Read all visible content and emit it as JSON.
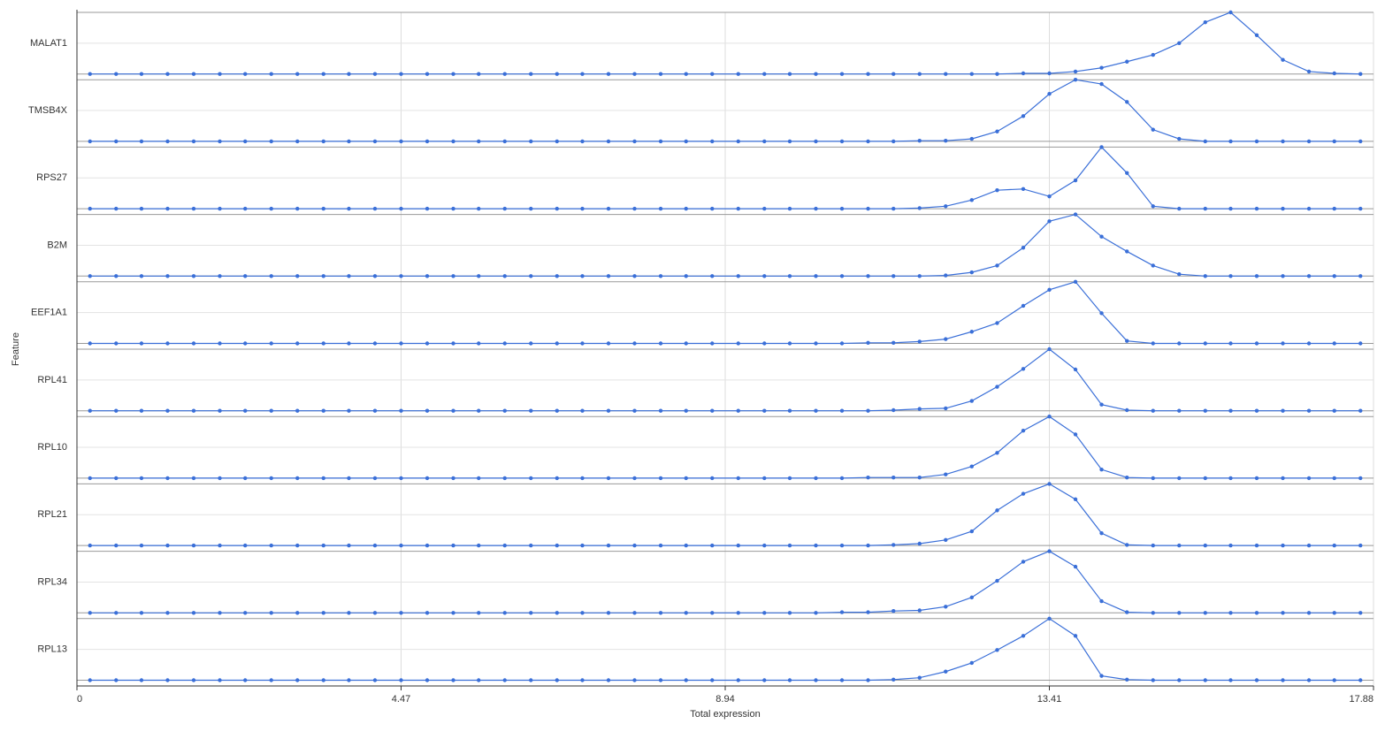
{
  "chart_data": {
    "type": "ridgeline",
    "xlabel": "Total expression",
    "ylabel": "Feature",
    "xlim": [
      0,
      17.88
    ],
    "xticks": [
      0,
      4.47,
      8.94,
      13.41,
      17.88
    ],
    "ylim": [
      0,
      1
    ],
    "grid": true,
    "color": "#3a6fd8",
    "x": [
      0.18,
      0.54,
      0.89,
      1.25,
      1.61,
      1.97,
      2.32,
      2.68,
      3.04,
      3.4,
      3.75,
      4.11,
      4.47,
      4.83,
      5.19,
      5.54,
      5.9,
      6.26,
      6.62,
      6.97,
      7.33,
      7.69,
      8.05,
      8.4,
      8.76,
      9.12,
      9.48,
      9.83,
      10.19,
      10.55,
      10.91,
      11.26,
      11.62,
      11.98,
      12.34,
      12.69,
      13.05,
      13.41,
      13.77,
      14.13,
      14.48,
      14.84,
      15.2,
      15.56,
      15.91,
      16.27,
      16.63,
      16.99,
      17.34,
      17.7
    ],
    "series": [
      {
        "name": "MALAT1",
        "values": [
          0,
          0,
          0,
          0,
          0,
          0,
          0,
          0,
          0,
          0,
          0,
          0,
          0,
          0,
          0,
          0,
          0,
          0,
          0,
          0,
          0,
          0,
          0,
          0,
          0,
          0,
          0,
          0,
          0,
          0,
          0,
          0,
          0,
          0,
          0,
          0,
          0.01,
          0.01,
          0.04,
          0.1,
          0.2,
          0.31,
          0.5,
          0.84,
          1,
          0.63,
          0.23,
          0.04,
          0.01,
          0
        ]
      },
      {
        "name": "TMSB4X",
        "values": [
          0,
          0,
          0,
          0,
          0,
          0,
          0,
          0,
          0,
          0,
          0,
          0,
          0,
          0,
          0,
          0,
          0,
          0,
          0,
          0,
          0,
          0,
          0,
          0,
          0,
          0,
          0,
          0,
          0,
          0,
          0,
          0,
          0.01,
          0.01,
          0.04,
          0.16,
          0.41,
          0.77,
          1,
          0.93,
          0.64,
          0.19,
          0.04,
          0,
          0,
          0,
          0,
          0,
          0,
          0
        ]
      },
      {
        "name": "RPS27",
        "values": [
          0,
          0,
          0,
          0,
          0,
          0,
          0,
          0,
          0,
          0,
          0,
          0,
          0,
          0,
          0,
          0,
          0,
          0,
          0,
          0,
          0,
          0,
          0,
          0,
          0,
          0,
          0,
          0,
          0,
          0,
          0,
          0,
          0.01,
          0.04,
          0.14,
          0.3,
          0.32,
          0.2,
          0.46,
          1,
          0.58,
          0.04,
          0,
          0,
          0,
          0,
          0,
          0,
          0,
          0
        ]
      },
      {
        "name": "B2M",
        "values": [
          0,
          0,
          0,
          0,
          0,
          0,
          0,
          0,
          0,
          0,
          0,
          0,
          0,
          0,
          0,
          0,
          0,
          0,
          0,
          0,
          0,
          0,
          0,
          0,
          0,
          0,
          0,
          0,
          0,
          0,
          0,
          0,
          0,
          0.01,
          0.06,
          0.17,
          0.46,
          0.89,
          1,
          0.64,
          0.4,
          0.17,
          0.03,
          0,
          0,
          0,
          0,
          0,
          0,
          0
        ]
      },
      {
        "name": "EEF1A1",
        "values": [
          0,
          0,
          0,
          0,
          0,
          0,
          0,
          0,
          0,
          0,
          0,
          0,
          0,
          0,
          0,
          0,
          0,
          0,
          0,
          0,
          0,
          0,
          0,
          0,
          0,
          0,
          0,
          0,
          0,
          0,
          0.01,
          0.01,
          0.03,
          0.07,
          0.19,
          0.33,
          0.61,
          0.87,
          1,
          0.49,
          0.04,
          0,
          0,
          0,
          0,
          0,
          0,
          0,
          0,
          0
        ]
      },
      {
        "name": "RPL41",
        "values": [
          0,
          0,
          0,
          0,
          0,
          0,
          0,
          0,
          0,
          0,
          0,
          0,
          0,
          0,
          0,
          0,
          0,
          0,
          0,
          0,
          0,
          0,
          0,
          0,
          0,
          0,
          0,
          0,
          0,
          0,
          0,
          0.01,
          0.03,
          0.04,
          0.16,
          0.39,
          0.68,
          1,
          0.67,
          0.1,
          0.01,
          0,
          0,
          0,
          0,
          0,
          0,
          0,
          0,
          0
        ]
      },
      {
        "name": "RPL10",
        "values": [
          0,
          0,
          0,
          0,
          0,
          0,
          0,
          0,
          0,
          0,
          0,
          0,
          0,
          0,
          0,
          0,
          0,
          0,
          0,
          0,
          0,
          0,
          0,
          0,
          0,
          0,
          0,
          0,
          0,
          0,
          0.01,
          0.01,
          0.01,
          0.06,
          0.19,
          0.41,
          0.77,
          1,
          0.71,
          0.14,
          0.01,
          0,
          0,
          0,
          0,
          0,
          0,
          0,
          0,
          0
        ]
      },
      {
        "name": "RPL21",
        "values": [
          0,
          0,
          0,
          0,
          0,
          0,
          0,
          0,
          0,
          0,
          0,
          0,
          0,
          0,
          0,
          0,
          0,
          0,
          0,
          0,
          0,
          0,
          0,
          0,
          0,
          0,
          0,
          0,
          0,
          0,
          0,
          0.01,
          0.03,
          0.09,
          0.23,
          0.57,
          0.84,
          1,
          0.75,
          0.2,
          0.01,
          0,
          0,
          0,
          0,
          0,
          0,
          0,
          0,
          0
        ]
      },
      {
        "name": "RPL34",
        "values": [
          0,
          0,
          0,
          0,
          0,
          0,
          0,
          0,
          0,
          0,
          0,
          0,
          0,
          0,
          0,
          0,
          0,
          0,
          0,
          0,
          0,
          0,
          0,
          0,
          0,
          0,
          0,
          0,
          0,
          0.01,
          0.01,
          0.03,
          0.04,
          0.1,
          0.25,
          0.52,
          0.83,
          1,
          0.75,
          0.19,
          0.01,
          0,
          0,
          0,
          0,
          0,
          0,
          0,
          0,
          0
        ]
      },
      {
        "name": "RPL13",
        "values": [
          0,
          0,
          0,
          0,
          0,
          0,
          0,
          0,
          0,
          0,
          0,
          0,
          0,
          0,
          0,
          0,
          0,
          0,
          0,
          0,
          0,
          0,
          0,
          0,
          0,
          0,
          0,
          0,
          0,
          0,
          0,
          0.01,
          0.04,
          0.14,
          0.28,
          0.49,
          0.72,
          1,
          0.72,
          0.07,
          0.01,
          0,
          0,
          0,
          0,
          0,
          0,
          0,
          0,
          0
        ]
      }
    ]
  }
}
